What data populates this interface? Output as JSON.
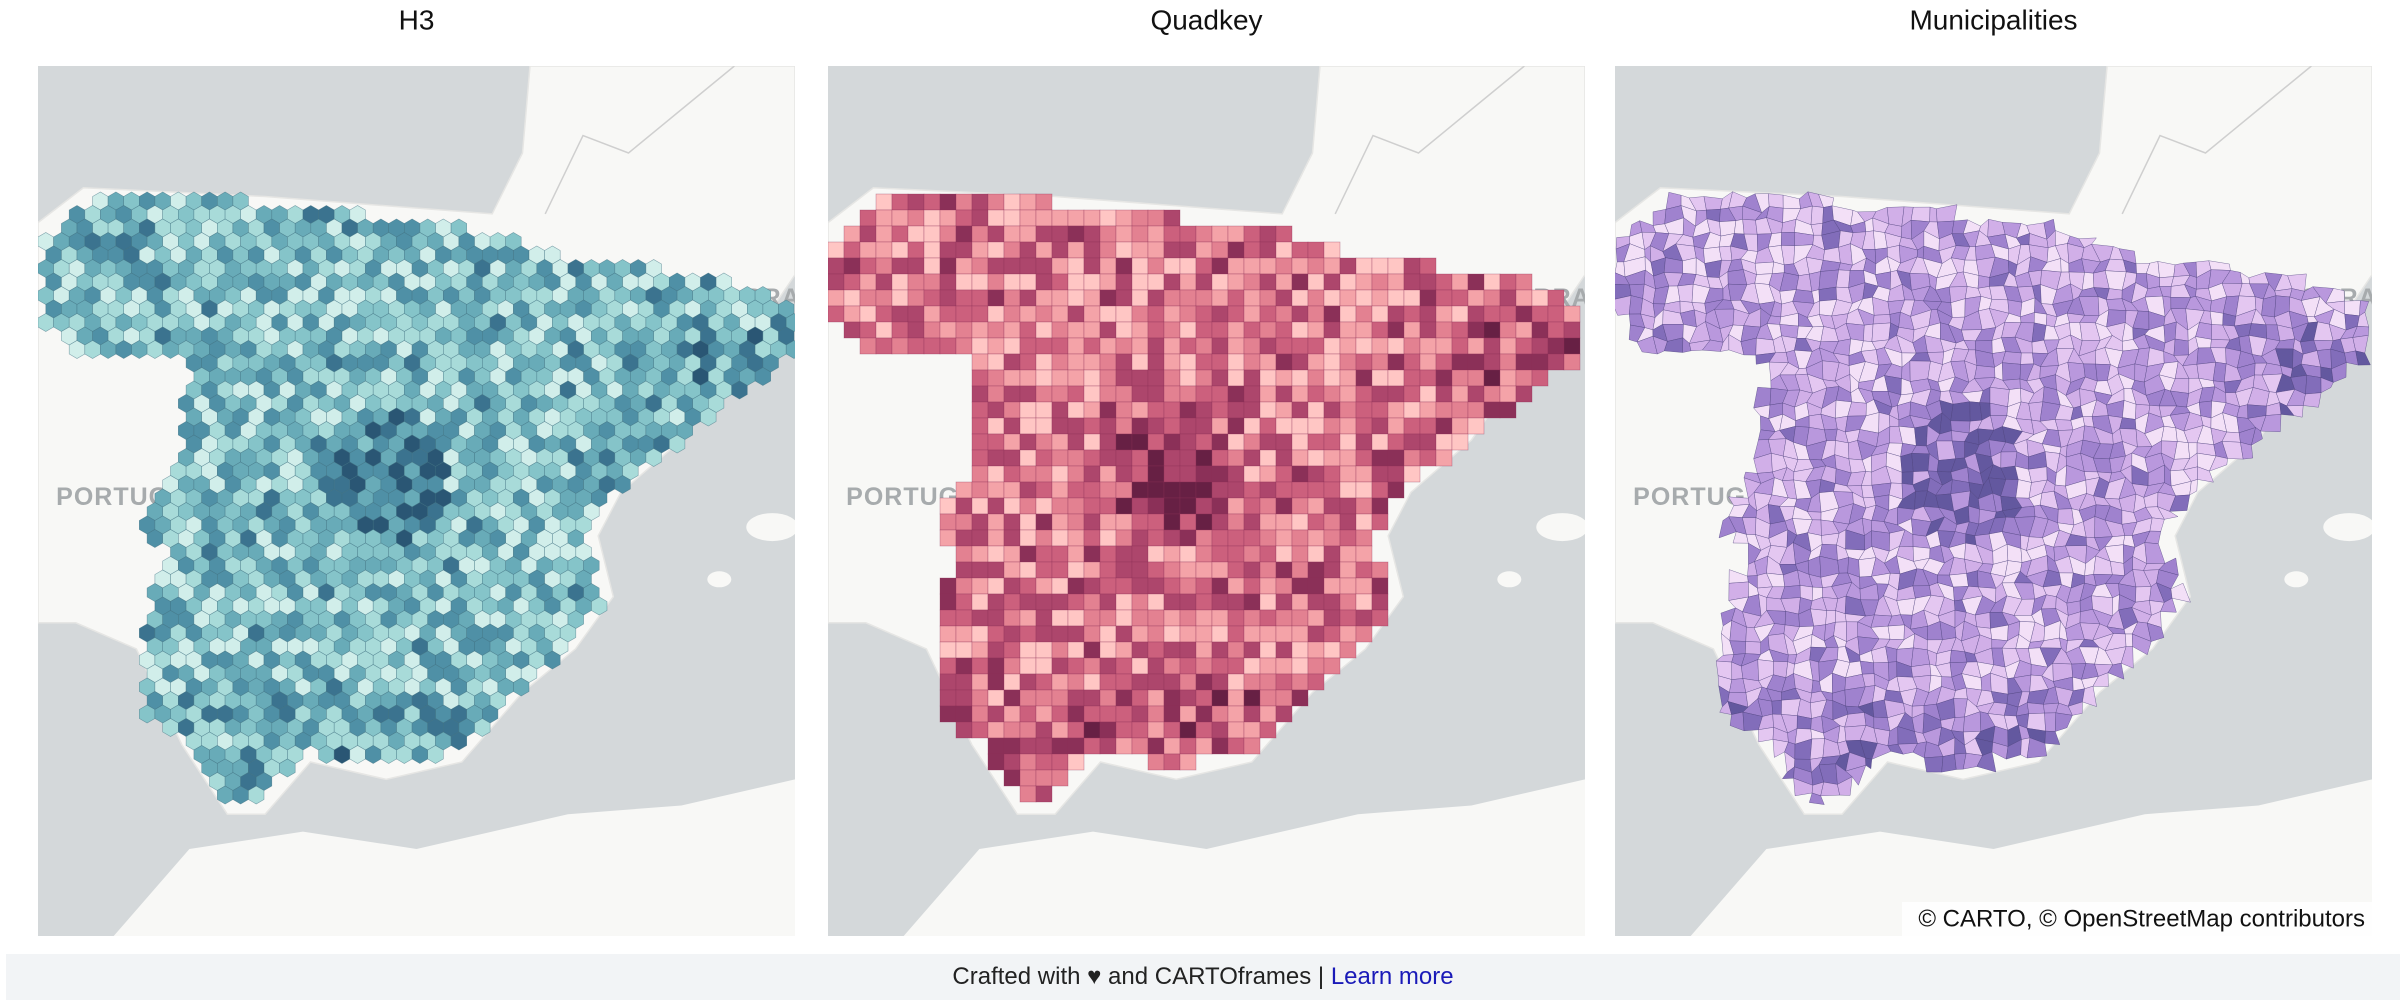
{
  "panels": [
    {
      "title": "H3"
    },
    {
      "title": "Quadkey"
    },
    {
      "title": "Municipalities"
    }
  ],
  "map_labels": {
    "portugal": "PORTUGA",
    "andorra": "ORRA"
  },
  "attribution": "© CARTO, © OpenStreetMap contributors",
  "footer": {
    "text": "Crafted with ♥ and CARTOframes | ",
    "link": "Learn more"
  }
}
